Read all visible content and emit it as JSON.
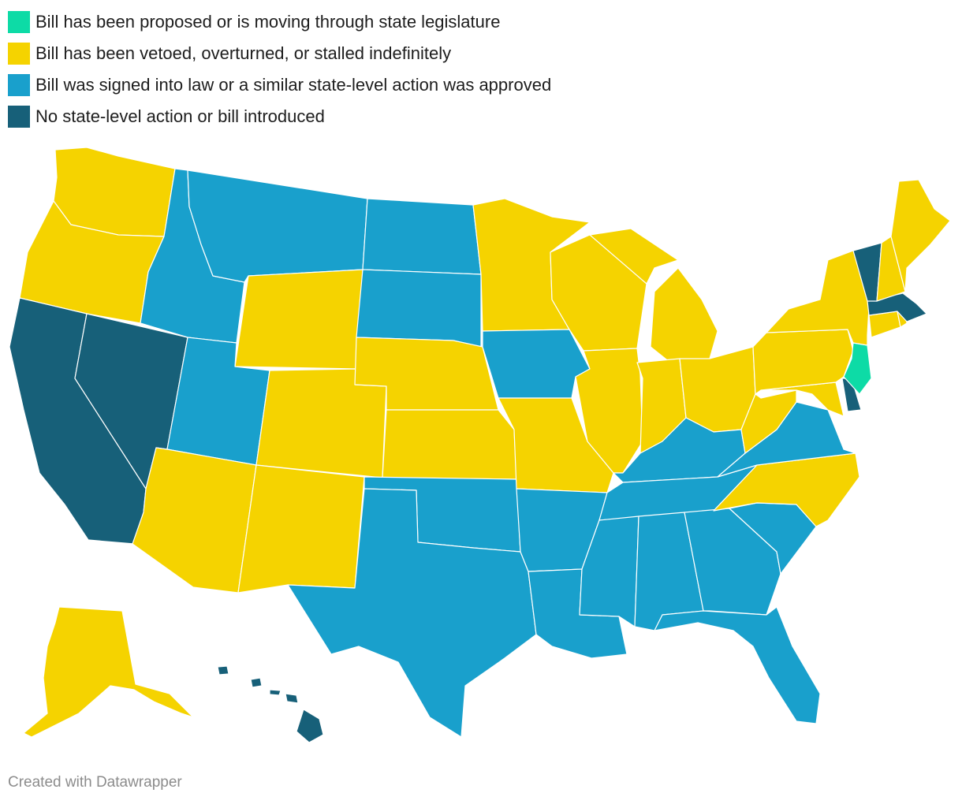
{
  "legend": [
    {
      "key": "proposed",
      "label": "Bill has been proposed or is moving through state legislature",
      "color": "#0ddba6"
    },
    {
      "key": "vetoed",
      "label": "Bill has been vetoed, overturned, or stalled indefinitely",
      "color": "#f5d300"
    },
    {
      "key": "signed",
      "label": "Bill was signed into law or a similar state-level action was approved",
      "color": "#19a0cc"
    },
    {
      "key": "none",
      "label": "No state-level action or bill introduced",
      "color": "#176079"
    }
  ],
  "states": {
    "WA": "vetoed",
    "OR": "vetoed",
    "CA": "none",
    "NV": "none",
    "ID": "signed",
    "MT": "signed",
    "WY": "vetoed",
    "UT": "signed",
    "AZ": "vetoed",
    "CO": "vetoed",
    "NM": "vetoed",
    "ND": "signed",
    "SD": "signed",
    "NE": "vetoed",
    "KS": "vetoed",
    "OK": "signed",
    "TX": "signed",
    "MN": "vetoed",
    "IA": "signed",
    "MO": "vetoed",
    "AR": "signed",
    "LA": "signed",
    "WI": "vetoed",
    "IL": "vetoed",
    "MI": "vetoed",
    "IN": "vetoed",
    "OH": "vetoed",
    "KY": "signed",
    "TN": "signed",
    "MS": "signed",
    "AL": "signed",
    "GA": "signed",
    "FL": "signed",
    "SC": "signed",
    "NC": "vetoed",
    "VA": "signed",
    "WV": "vetoed",
    "MD": "vetoed",
    "DE": "none",
    "NJ": "proposed",
    "PA": "vetoed",
    "NY": "vetoed",
    "CT": "vetoed",
    "RI": "vetoed",
    "MA": "none",
    "VT": "none",
    "NH": "vetoed",
    "ME": "vetoed",
    "AK": "vetoed",
    "HI": "none"
  },
  "credit": "Created with Datawrapper"
}
